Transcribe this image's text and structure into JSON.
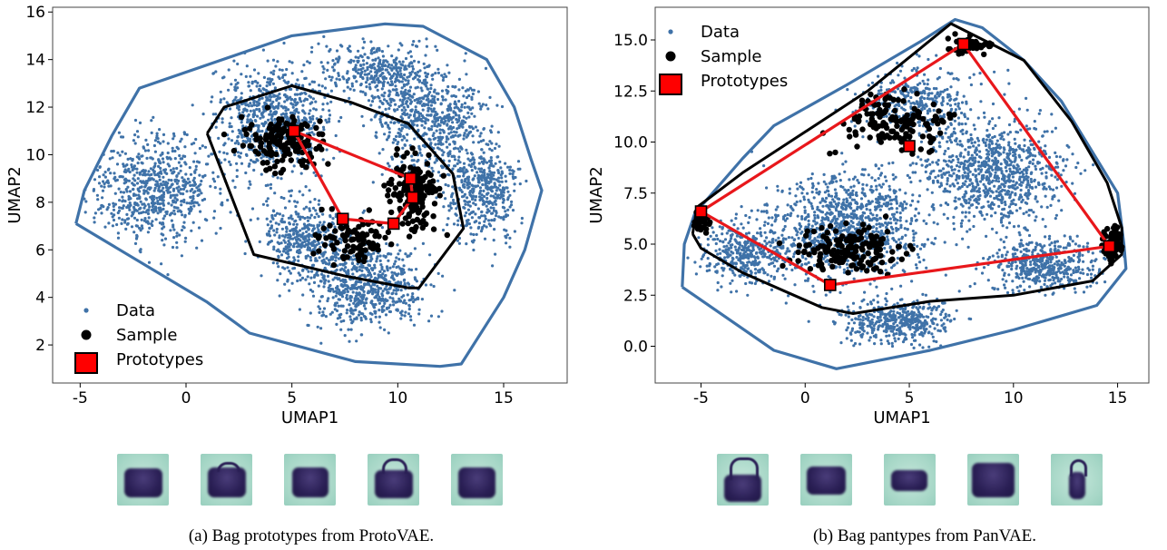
{
  "colors": {
    "data": "#3f72a8",
    "hull": "#3f72a8",
    "sample": "#000000",
    "prototype": "#ff0000",
    "line": "#e8171b"
  },
  "chart_data": [
    {
      "type": "scatter",
      "xlabel": "UMAP1",
      "ylabel": "UMAP2",
      "xlim": [
        -6.3,
        18.0
      ],
      "ylim": [
        0.4,
        16.2
      ],
      "xticks": [
        "-5",
        "0",
        "5",
        "10",
        "15"
      ],
      "xtick_values": [
        -5,
        0,
        5,
        10,
        15
      ],
      "yticks": [
        "2",
        "4",
        "6",
        "8",
        "10",
        "12",
        "14",
        "16"
      ],
      "ytick_values": [
        2,
        4,
        6,
        8,
        10,
        12,
        14,
        16
      ],
      "legend": [
        "Data",
        "Sample",
        "Prototypes"
      ],
      "legend_position": "lower-left",
      "data_hull": [
        [
          -5.2,
          7.1
        ],
        [
          -4.8,
          8.5
        ],
        [
          -3.5,
          10.8
        ],
        [
          -2.2,
          12.8
        ],
        [
          5.0,
          15.0
        ],
        [
          9.4,
          15.5
        ],
        [
          11.2,
          15.4
        ],
        [
          14.2,
          14.0
        ],
        [
          15.5,
          12.0
        ],
        [
          16.3,
          9.8
        ],
        [
          16.8,
          8.5
        ],
        [
          16.0,
          6.0
        ],
        [
          15.0,
          4.0
        ],
        [
          13.0,
          1.2
        ],
        [
          12.0,
          1.1
        ],
        [
          8.0,
          1.3
        ],
        [
          3.0,
          2.5
        ],
        [
          1.0,
          3.8
        ],
        [
          -5.2,
          7.1
        ]
      ],
      "sample_hull": [
        [
          1.0,
          10.9
        ],
        [
          1.8,
          12.0
        ],
        [
          5.0,
          12.9
        ],
        [
          7.8,
          12.2
        ],
        [
          10.5,
          11.3
        ],
        [
          12.6,
          9.2
        ],
        [
          13.1,
          6.9
        ],
        [
          11.0,
          4.4
        ],
        [
          10.5,
          4.4
        ],
        [
          7.5,
          4.9
        ],
        [
          3.2,
          5.8
        ],
        [
          1.0,
          10.9
        ]
      ],
      "prototypes": [
        [
          5.1,
          11.0
        ],
        [
          10.6,
          9.0
        ],
        [
          10.7,
          8.2
        ],
        [
          9.8,
          7.1
        ],
        [
          7.4,
          7.3
        ]
      ],
      "prototype_path": [
        [
          5.1,
          11.0
        ],
        [
          10.6,
          9.0
        ],
        [
          10.7,
          8.2
        ],
        [
          9.8,
          7.1
        ],
        [
          7.4,
          7.3
        ],
        [
          5.1,
          11.0
        ]
      ],
      "data_blobs": [
        [
          -1.5,
          8.5,
          3.5,
          2.6,
          700
        ],
        [
          4.0,
          11.5,
          3.0,
          2.6,
          700
        ],
        [
          11.5,
          11.5,
          3.0,
          2.6,
          650
        ],
        [
          14.0,
          8.5,
          2.0,
          2.4,
          450
        ],
        [
          8.5,
          4.5,
          3.2,
          2.0,
          700
        ],
        [
          5.5,
          6.5,
          2.5,
          2.0,
          400
        ],
        [
          9.0,
          13.5,
          3.0,
          1.5,
          350
        ]
      ],
      "sample_blobs": [
        [
          4.5,
          10.5,
          2.2,
          1.3,
          150
        ],
        [
          10.8,
          8.5,
          1.4,
          1.8,
          160
        ],
        [
          8.0,
          6.5,
          2.0,
          1.2,
          90
        ]
      ],
      "images": 5
    },
    {
      "type": "scatter",
      "xlabel": "UMAP1",
      "ylabel": "UMAP2",
      "xlim": [
        -7.2,
        16.5
      ],
      "ylim": [
        -1.8,
        16.6
      ],
      "xticks": [
        "-5",
        "0",
        "5",
        "10",
        "15"
      ],
      "xtick_values": [
        -5,
        0,
        5,
        10,
        15
      ],
      "yticks": [
        "0.0",
        "2.5",
        "5.0",
        "7.5",
        "10.0",
        "12.5",
        "15.0"
      ],
      "ytick_values": [
        0,
        2.5,
        5,
        7.5,
        10,
        12.5,
        15
      ],
      "legend": [
        "Data",
        "Sample",
        "Prototypes"
      ],
      "legend_position": "upper-left",
      "data_hull": [
        [
          -5.9,
          2.9
        ],
        [
          -5.8,
          5.0
        ],
        [
          -5.3,
          6.5
        ],
        [
          -3.0,
          9.2
        ],
        [
          -1.5,
          10.8
        ],
        [
          2.0,
          12.8
        ],
        [
          5.5,
          14.9
        ],
        [
          7.2,
          16.0
        ],
        [
          8.5,
          15.6
        ],
        [
          10.5,
          14.0
        ],
        [
          12.3,
          12.0
        ],
        [
          13.5,
          10.0
        ],
        [
          15.0,
          7.5
        ],
        [
          15.3,
          5.0
        ],
        [
          15.4,
          3.8
        ],
        [
          14.0,
          2.0
        ],
        [
          10.0,
          0.8
        ],
        [
          6.0,
          -0.2
        ],
        [
          1.5,
          -1.1
        ],
        [
          -1.5,
          -0.2
        ],
        [
          -5.9,
          2.9
        ]
      ],
      "sample_hull": [
        [
          -5.4,
          5.5
        ],
        [
          -5.2,
          6.8
        ],
        [
          -3.0,
          8.5
        ],
        [
          0.0,
          10.5
        ],
        [
          3.0,
          12.5
        ],
        [
          7.0,
          15.8
        ],
        [
          10.5,
          14.0
        ],
        [
          12.8,
          11.0
        ],
        [
          14.5,
          8.0
        ],
        [
          15.2,
          5.8
        ],
        [
          15.2,
          4.5
        ],
        [
          13.8,
          3.2
        ],
        [
          10.0,
          2.5
        ],
        [
          6.0,
          2.2
        ],
        [
          2.3,
          1.6
        ],
        [
          0.8,
          1.9
        ],
        [
          -3.0,
          3.6
        ],
        [
          -5.0,
          4.8
        ],
        [
          -5.4,
          5.5
        ]
      ],
      "prototypes": [
        [
          -5.0,
          6.6
        ],
        [
          7.6,
          14.8
        ],
        [
          14.6,
          4.9
        ],
        [
          1.2,
          3.0
        ],
        [
          5.0,
          9.8
        ]
      ],
      "prototype_path": [
        [
          -5.0,
          6.6
        ],
        [
          7.6,
          14.8
        ],
        [
          14.6,
          4.9
        ],
        [
          1.2,
          3.0
        ],
        [
          -5.0,
          6.6
        ]
      ],
      "data_blobs": [
        [
          2.0,
          6.0,
          4.5,
          3.0,
          1000
        ],
        [
          9.0,
          8.5,
          4.0,
          3.0,
          900
        ],
        [
          -3.0,
          4.5,
          2.5,
          1.8,
          400
        ],
        [
          4.5,
          1.2,
          3.0,
          1.2,
          450
        ],
        [
          11.5,
          4.0,
          3.0,
          1.5,
          500
        ],
        [
          5.5,
          12.0,
          3.0,
          1.8,
          350
        ]
      ],
      "sample_blobs": [
        [
          2.0,
          4.8,
          3.0,
          1.3,
          170
        ],
        [
          4.5,
          11.0,
          3.0,
          1.8,
          140
        ],
        [
          8.0,
          14.8,
          1.2,
          0.6,
          60
        ],
        [
          14.8,
          5.0,
          0.6,
          1.3,
          80
        ],
        [
          -5.0,
          6.0,
          0.5,
          0.6,
          30
        ]
      ],
      "images": 5
    }
  ],
  "captions": [
    "(a) Bag prototypes from ProtoVAE.",
    "(b) Bag pantypes from PanVAE."
  ]
}
